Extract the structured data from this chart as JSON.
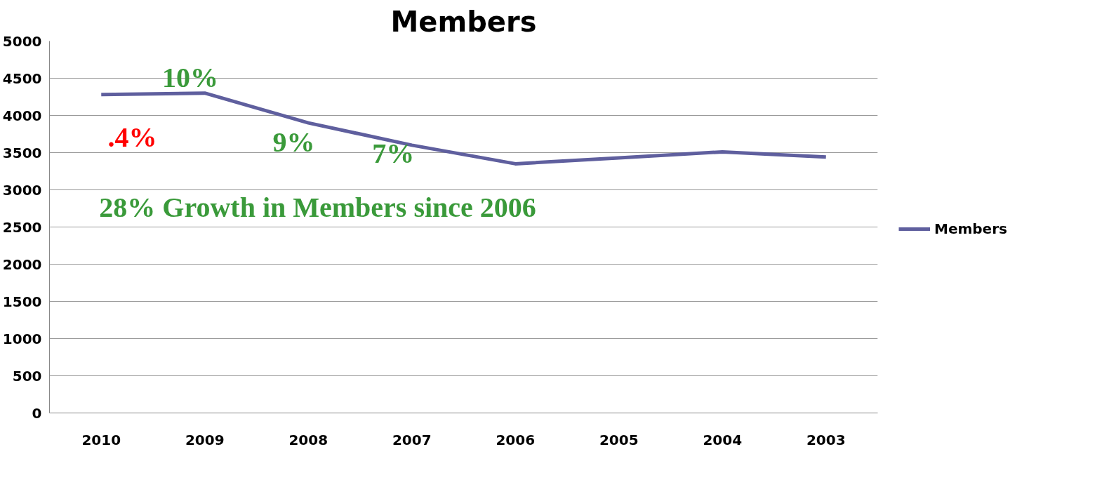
{
  "chart_data": {
    "type": "line",
    "title": "Members",
    "categories": [
      "2010",
      "2009",
      "2008",
      "2007",
      "2006",
      "2005",
      "2004",
      "2003"
    ],
    "series": [
      {
        "name": "Members",
        "color": "#5f5f9e",
        "values": [
          4280,
          4300,
          3900,
          3600,
          3350,
          3430,
          3510,
          3440
        ]
      }
    ],
    "ylim": [
      0,
      5000
    ],
    "yticks": [
      0,
      500,
      1000,
      1500,
      2000,
      2500,
      3000,
      3500,
      4000,
      4500,
      5000
    ],
    "grid": "y",
    "legend": "right",
    "marker": "none",
    "line_style": "solid",
    "annotations": [
      ".4%",
      "10%",
      "9%",
      "7%",
      "28% Growth in Members since 2006"
    ]
  }
}
